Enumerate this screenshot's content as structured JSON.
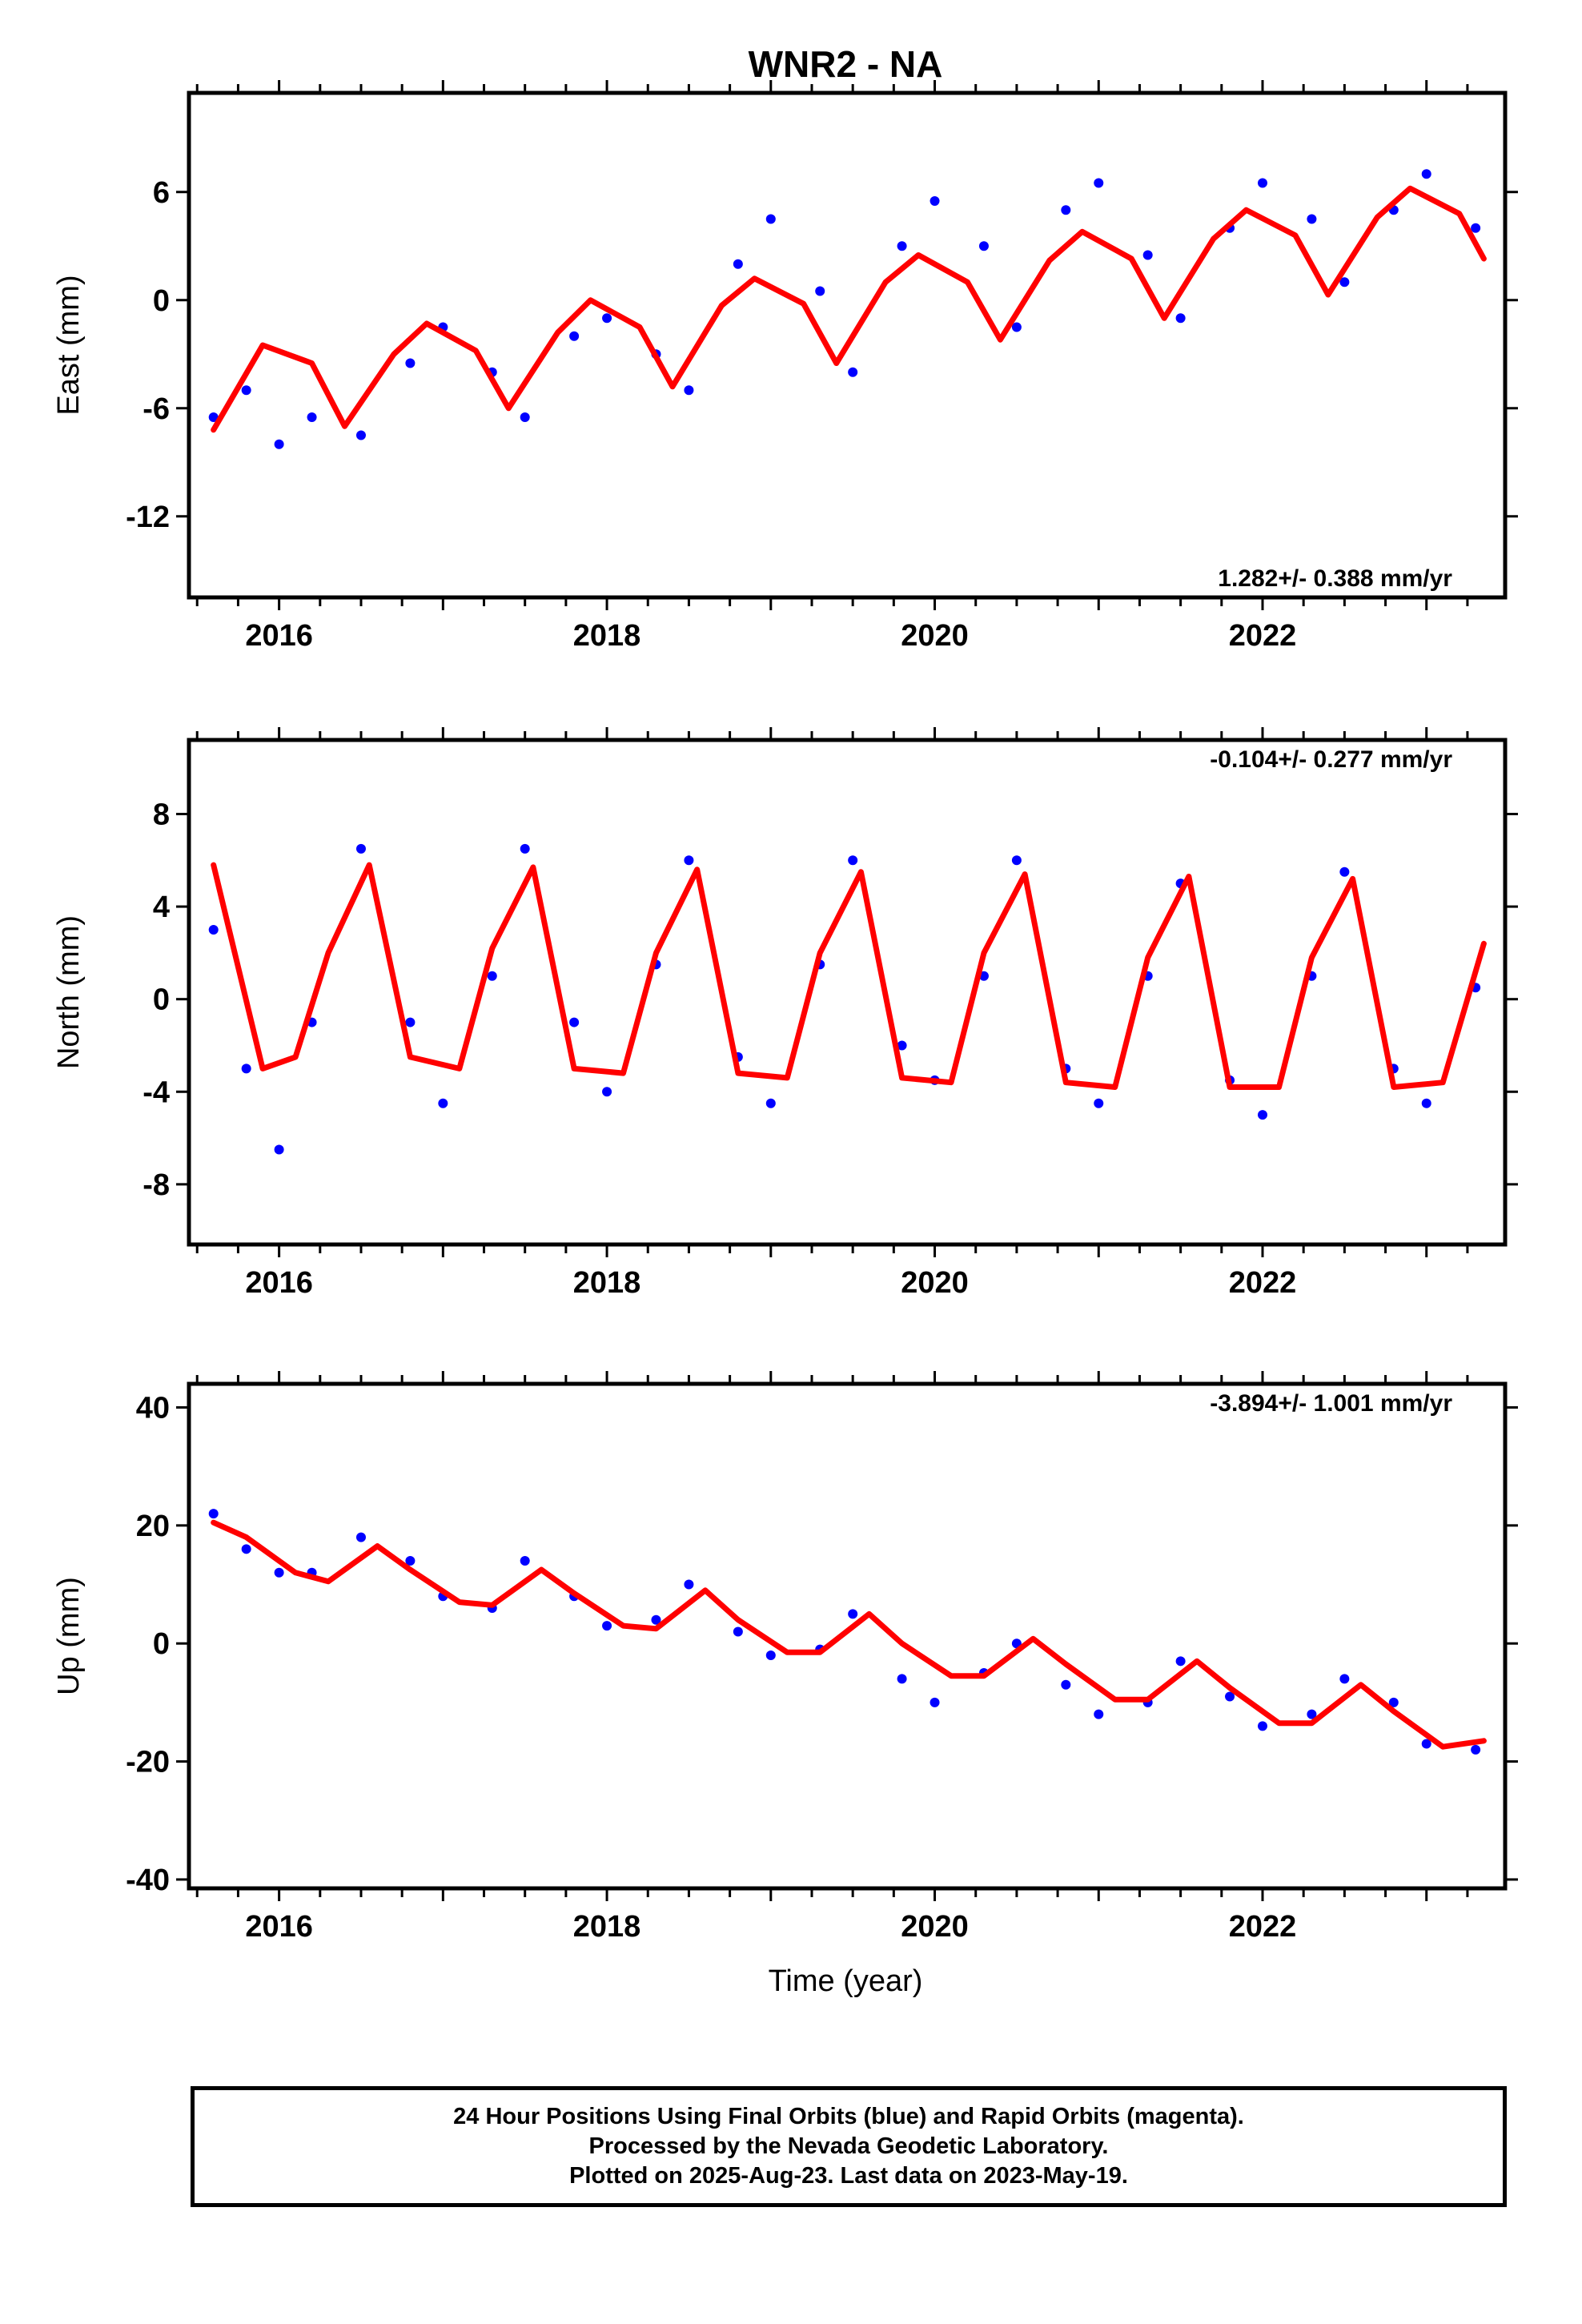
{
  "title": "WNR2 - NA",
  "xlabel": "Time (year)",
  "footer": {
    "line1": "24 Hour Positions Using Final Orbits (blue) and Rapid Orbits (magenta).",
    "line2": "Processed by the Nevada Geodetic Laboratory.",
    "line3": "Plotted on 2025-Aug-23. Last data on 2023-May-19."
  },
  "colors": {
    "points": "#0000ff",
    "fit": "#ff0000",
    "axes": "#000000"
  },
  "chart_data": [
    {
      "type": "scatter",
      "title": "WNR2 - NA",
      "ylabel": "East (mm)",
      "rate_label": "1.282+/- 0.388 mm/yr",
      "xlim": [
        2015.45,
        2023.48
      ],
      "ylim": [
        -16.5,
        11.5
      ],
      "xticks": [
        "2016",
        "2018",
        "2020",
        "2022"
      ],
      "yticks": [
        "-12",
        "-6",
        "0",
        "6"
      ],
      "series": [
        {
          "type": "scatter",
          "color": "#0000ff",
          "x": [
            2015.6,
            2015.8,
            2016.0,
            2016.2,
            2016.5,
            2016.8,
            2017.0,
            2017.3,
            2017.5,
            2017.8,
            2018.0,
            2018.3,
            2018.5,
            2018.8,
            2019.0,
            2019.3,
            2019.5,
            2019.8,
            2020.0,
            2020.3,
            2020.5,
            2020.8,
            2021.0,
            2021.3,
            2021.5,
            2021.8,
            2022.0,
            2022.3,
            2022.5,
            2022.8,
            2023.0,
            2023.3
          ],
          "y": [
            -6.5,
            -5.0,
            -8.0,
            -6.5,
            -7.5,
            -3.5,
            -1.5,
            -4.0,
            -6.5,
            -2.0,
            -1.0,
            -3.0,
            -5.0,
            2.0,
            4.5,
            0.5,
            -4.0,
            3.0,
            5.5,
            3.0,
            -1.5,
            5.0,
            6.5,
            2.5,
            -1.0,
            4.0,
            6.5,
            4.5,
            1.0,
            5.0,
            7.0,
            4.0
          ]
        },
        {
          "type": "line",
          "color": "#ff0000",
          "x": [
            2015.6,
            2015.9,
            2016.2,
            2016.4,
            2016.7,
            2016.9,
            2017.2,
            2017.4,
            2017.7,
            2017.9,
            2018.2,
            2018.4,
            2018.7,
            2018.9,
            2019.2,
            2019.4,
            2019.7,
            2019.9,
            2020.2,
            2020.4,
            2020.7,
            2020.9,
            2021.2,
            2021.4,
            2021.7,
            2021.9,
            2022.2,
            2022.4,
            2022.7,
            2022.9,
            2023.2,
            2023.35
          ],
          "y": [
            -7.2,
            -2.5,
            -3.5,
            -7.0,
            -3.0,
            -1.3,
            -2.8,
            -6.0,
            -1.8,
            0.0,
            -1.5,
            -4.8,
            -0.3,
            1.2,
            -0.2,
            -3.5,
            1.0,
            2.5,
            1.0,
            -2.2,
            2.2,
            3.8,
            2.3,
            -1.0,
            3.4,
            5.0,
            3.6,
            0.3,
            4.6,
            6.2,
            4.8,
            2.3
          ]
        }
      ]
    },
    {
      "type": "scatter",
      "ylabel": "North (mm)",
      "rate_label": "-0.104+/- 0.277 mm/yr",
      "xlim": [
        2015.45,
        2023.48
      ],
      "ylim": [
        -10.6,
        11.2
      ],
      "xticks": [
        "2016",
        "2018",
        "2020",
        "2022"
      ],
      "yticks": [
        "-8",
        "-4",
        "0",
        "4",
        "8"
      ],
      "series": [
        {
          "type": "scatter",
          "color": "#0000ff",
          "x": [
            2015.6,
            2015.8,
            2016.0,
            2016.2,
            2016.5,
            2016.8,
            2017.0,
            2017.3,
            2017.5,
            2017.8,
            2018.0,
            2018.3,
            2018.5,
            2018.8,
            2019.0,
            2019.3,
            2019.5,
            2019.8,
            2020.0,
            2020.3,
            2020.5,
            2020.8,
            2021.0,
            2021.3,
            2021.5,
            2021.8,
            2022.0,
            2022.3,
            2022.5,
            2022.8,
            2023.0,
            2023.3
          ],
          "y": [
            3.0,
            -3.0,
            -6.5,
            -1.0,
            6.5,
            -1.0,
            -4.5,
            1.0,
            6.5,
            -1.0,
            -4.0,
            1.5,
            6.0,
            -2.5,
            -4.5,
            1.5,
            6.0,
            -2.0,
            -3.5,
            1.0,
            6.0,
            -3.0,
            -4.5,
            1.0,
            5.0,
            -3.5,
            -5.0,
            1.0,
            5.5,
            -3.0,
            -4.5,
            0.5
          ]
        },
        {
          "type": "line",
          "color": "#ff0000",
          "x": [
            2015.6,
            2015.9,
            2016.1,
            2016.3,
            2016.55,
            2016.8,
            2017.1,
            2017.3,
            2017.55,
            2017.8,
            2018.1,
            2018.3,
            2018.55,
            2018.8,
            2019.1,
            2019.3,
            2019.55,
            2019.8,
            2020.1,
            2020.3,
            2020.55,
            2020.8,
            2021.1,
            2021.3,
            2021.55,
            2021.8,
            2022.1,
            2022.3,
            2022.55,
            2022.8,
            2023.1,
            2023.35
          ],
          "y": [
            5.8,
            -3.0,
            -2.5,
            2.0,
            5.8,
            -2.5,
            -3.0,
            2.2,
            5.7,
            -3.0,
            -3.2,
            2.0,
            5.6,
            -3.2,
            -3.4,
            2.0,
            5.5,
            -3.4,
            -3.6,
            2.0,
            5.4,
            -3.6,
            -3.8,
            1.8,
            5.3,
            -3.8,
            -3.8,
            1.8,
            5.2,
            -3.8,
            -3.6,
            2.4
          ]
        }
      ]
    },
    {
      "type": "scatter",
      "ylabel": "Up (mm)",
      "rate_label": "-3.894+/- 1.001 mm/yr",
      "xlim": [
        2015.45,
        2023.48
      ],
      "ylim": [
        -41.5,
        44.0
      ],
      "xticks": [
        "2016",
        "2018",
        "2020",
        "2022"
      ],
      "yticks": [
        "-40",
        "-20",
        "0",
        "20",
        "40"
      ],
      "series": [
        {
          "type": "scatter",
          "color": "#0000ff",
          "x": [
            2015.6,
            2015.8,
            2016.0,
            2016.2,
            2016.5,
            2016.8,
            2017.0,
            2017.3,
            2017.5,
            2017.8,
            2018.0,
            2018.3,
            2018.5,
            2018.8,
            2019.0,
            2019.3,
            2019.5,
            2019.8,
            2020.0,
            2020.3,
            2020.5,
            2020.8,
            2021.0,
            2021.3,
            2021.5,
            2021.8,
            2022.0,
            2022.3,
            2022.5,
            2022.8,
            2023.0,
            2023.3
          ],
          "y": [
            22.0,
            16.0,
            12.0,
            12.0,
            18.0,
            14.0,
            8.0,
            6.0,
            14.0,
            8.0,
            3.0,
            4.0,
            10.0,
            2.0,
            -2.0,
            -1.0,
            5.0,
            -6.0,
            -10.0,
            -5.0,
            0.0,
            -7.0,
            -12.0,
            -10.0,
            -3.0,
            -9.0,
            -14.0,
            -12.0,
            -6.0,
            -10.0,
            -17.0,
            -18.0
          ]
        },
        {
          "type": "line",
          "color": "#ff0000",
          "x": [
            2015.6,
            2015.8,
            2016.1,
            2016.3,
            2016.6,
            2016.8,
            2017.1,
            2017.3,
            2017.6,
            2017.8,
            2018.1,
            2018.3,
            2018.6,
            2018.8,
            2019.1,
            2019.3,
            2019.6,
            2019.8,
            2020.1,
            2020.3,
            2020.6,
            2020.8,
            2021.1,
            2021.3,
            2021.6,
            2021.8,
            2022.1,
            2022.3,
            2022.6,
            2022.8,
            2023.1,
            2023.35
          ],
          "y": [
            20.5,
            18.0,
            12.0,
            10.5,
            16.5,
            12.5,
            7.0,
            6.5,
            12.5,
            8.5,
            3.0,
            2.5,
            9.0,
            4.0,
            -1.5,
            -1.5,
            5.0,
            0.0,
            -5.5,
            -5.5,
            0.8,
            -3.5,
            -9.5,
            -9.5,
            -3.0,
            -7.5,
            -13.5,
            -13.5,
            -7.0,
            -11.5,
            -17.5,
            -16.5
          ]
        }
      ]
    }
  ]
}
